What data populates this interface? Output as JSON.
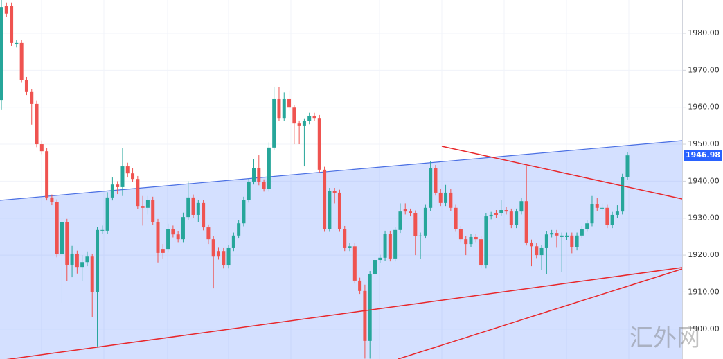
{
  "chart_data": {
    "type": "candlestick",
    "up_color": "#26a69a",
    "down_color": "#ef5350",
    "ylim": [
      1891.9,
      1989.0
    ],
    "yticks": [
      {
        "value": 1900,
        "label": "1900.00"
      },
      {
        "value": 1910,
        "label": "1910.00"
      },
      {
        "value": 1920,
        "label": "1920.00"
      },
      {
        "value": 1930,
        "label": "1930.00"
      },
      {
        "value": 1940,
        "label": "1940.00"
      },
      {
        "value": 1950,
        "label": "1950.00"
      },
      {
        "value": 1960,
        "label": "1960.00"
      },
      {
        "value": 1970,
        "label": "1970.00"
      },
      {
        "value": 1980,
        "label": "1980.00"
      }
    ],
    "grid": true,
    "last_price": {
      "value": 1946.98,
      "label": "1946.98",
      "color": "#2962ff"
    },
    "watermark": "汇外网",
    "open": [
      1961.8,
      1987.5,
      1987.5,
      1977.0,
      1977.4,
      1967.4,
      1964.1,
      1960.9,
      1950.0,
      1948.1,
      1935.6,
      1934.3,
      1920.2,
      1929.0,
      1917.4,
      1920.4,
      1916.8,
      1918.1,
      1919.6,
      1909.9,
      1926.6,
      1926.6,
      1935.6,
      1939.1,
      1938.4,
      1944.0,
      1942.1,
      1940.6,
      1933.3,
      1932.8,
      1935.0,
      1929.0,
      1921.5,
      1921.5,
      1927.1,
      1925.6,
      1924.3,
      1930.3,
      1935.6,
      1930.9,
      1934.1,
      1927.5,
      1924.3,
      1921.1,
      1921.1,
      1917.2,
      1921.9,
      1925.3,
      1928.6,
      1935.0,
      1939.9,
      1943.6,
      1939.7,
      1938.0,
      1949.1,
      1962.2,
      1957.1,
      1962.2,
      1959.9,
      1955.6,
      1954.9,
      1956.2,
      1957.7,
      1957.1,
      1943.1,
      1927.1,
      1937.4,
      1936.9,
      1927.1,
      1921.9,
      1922.4,
      1913.1,
      1910.3,
      1896.8,
      1914.9,
      1918.7,
      1919.3,
      1925.8,
      1919.1,
      1926.8,
      1932.4,
      1931.8,
      1931.3,
      1925.1,
      1925.3,
      1932.8,
      1943.6,
      1936.9,
      1934.1,
      1936.9,
      1932.8,
      1927.1,
      1924.3,
      1923.0,
      1924.9,
      1924.3,
      1917.2,
      1930.5,
      1931.4,
      1931.4,
      1932.2,
      1931.8,
      1928.1,
      1931.8,
      1934.6,
      1923.4,
      1922.4,
      1920.0,
      1921.9,
      1925.6,
      1926.0,
      1924.9,
      1924.9,
      1925.3,
      1922.1,
      1925.3,
      1927.1,
      1928.6,
      1933.7,
      1932.6,
      1932.8,
      1928.1,
      1930.9,
      1931.8,
      1941.2
    ],
    "high": [
      1989.0,
      1988.3,
      1988.3,
      1978.2,
      1978.2,
      1968.2,
      1964.9,
      1961.7,
      1951.0,
      1948.9,
      1936.4,
      1935.1,
      1929.8,
      1929.8,
      1922.5,
      1921.2,
      1920.0,
      1921.0,
      1920.4,
      1927.6,
      1928.0,
      1937.0,
      1941.0,
      1940.0,
      1949.0,
      1945.0,
      1943.5,
      1941.4,
      1936.0,
      1936.0,
      1935.8,
      1929.8,
      1923.0,
      1928.5,
      1928.0,
      1926.4,
      1931.5,
      1940.0,
      1936.4,
      1935.0,
      1934.9,
      1928.3,
      1925.1,
      1922.0,
      1921.9,
      1922.7,
      1926.1,
      1929.4,
      1935.8,
      1940.7,
      1946.0,
      1947.0,
      1940.5,
      1950.5,
      1965.5,
      1965.5,
      1964.0,
      1964.5,
      1960.7,
      1956.4,
      1957.0,
      1958.5,
      1958.5,
      1957.9,
      1943.9,
      1938.2,
      1938.2,
      1937.7,
      1927.9,
      1923.2,
      1923.2,
      1913.9,
      1912.0,
      1915.7,
      1919.5,
      1920.1,
      1926.6,
      1926.6,
      1927.6,
      1934.0,
      1934.0,
      1932.6,
      1932.1,
      1926.1,
      1933.6,
      1945.5,
      1944.4,
      1938.0,
      1939.0,
      1938.0,
      1933.6,
      1927.9,
      1925.1,
      1925.7,
      1925.7,
      1925.1,
      1931.3,
      1931.7,
      1932.2,
      1935.0,
      1933.0,
      1932.6,
      1932.6,
      1935.4,
      1944.0,
      1924.2,
      1923.2,
      1922.7,
      1926.4,
      1926.8,
      1926.8,
      1926.1,
      1926.1,
      1926.1,
      1926.1,
      1927.9,
      1929.4,
      1936.0,
      1935.5,
      1934.0,
      1933.6,
      1931.7,
      1933.5,
      1942.0,
      1947.8
    ],
    "low": [
      1959.4,
      1984.5,
      1976.6,
      1976.2,
      1966.6,
      1963.3,
      1955.3,
      1949.2,
      1947.3,
      1934.8,
      1933.5,
      1919.4,
      1907.0,
      1913.0,
      1914.0,
      1915.0,
      1913.0,
      1917.0,
      1903.3,
      1895.3,
      1925.8,
      1925.8,
      1934.8,
      1936.5,
      1936.0,
      1941.0,
      1939.8,
      1932.5,
      1928.0,
      1931.0,
      1928.2,
      1918.0,
      1919.0,
      1920.7,
      1924.8,
      1923.5,
      1923.5,
      1929.5,
      1930.1,
      1929.0,
      1926.7,
      1923.0,
      1911.0,
      1918.8,
      1916.4,
      1916.4,
      1921.1,
      1924.5,
      1927.8,
      1934.2,
      1939.1,
      1938.9,
      1937.2,
      1937.2,
      1948.3,
      1956.3,
      1956.3,
      1959.1,
      1950.0,
      1950.0,
      1944.0,
      1955.4,
      1956.3,
      1942.3,
      1926.3,
      1926.3,
      1934.0,
      1926.3,
      1921.1,
      1921.1,
      1912.3,
      1909.5,
      1892.0,
      1892.0,
      1914.1,
      1917.9,
      1918.5,
      1918.3,
      1918.3,
      1926.0,
      1931.0,
      1930.5,
      1920.0,
      1919.0,
      1924.5,
      1932.0,
      1936.1,
      1933.3,
      1933.3,
      1932.0,
      1926.3,
      1923.5,
      1920.0,
      1922.2,
      1923.5,
      1916.4,
      1916.4,
      1929.7,
      1930.1,
      1930.6,
      1931.0,
      1927.3,
      1927.3,
      1931.0,
      1922.6,
      1917.0,
      1919.2,
      1916.0,
      1914.9,
      1924.8,
      1922.0,
      1915.5,
      1924.1,
      1920.5,
      1921.3,
      1924.5,
      1926.3,
      1927.8,
      1932.0,
      1931.8,
      1927.3,
      1927.3,
      1930.1,
      1931.0,
      1940.4
    ],
    "close": [
      1987.1,
      1985.3,
      1977.4,
      1977.4,
      1967.4,
      1964.1,
      1960.9,
      1950.0,
      1948.1,
      1935.6,
      1934.3,
      1920.2,
      1929.0,
      1917.4,
      1920.4,
      1916.8,
      1918.1,
      1919.6,
      1909.9,
      1926.8,
      1926.8,
      1935.6,
      1939.1,
      1938.4,
      1944.0,
      1942.1,
      1940.6,
      1933.3,
      1932.8,
      1935.0,
      1929.0,
      1920.6,
      1920.6,
      1927.1,
      1925.6,
      1924.3,
      1930.3,
      1935.6,
      1930.9,
      1934.1,
      1927.5,
      1924.3,
      1919.6,
      1919.6,
      1917.2,
      1921.9,
      1925.3,
      1928.6,
      1935.0,
      1939.9,
      1943.6,
      1939.7,
      1938.0,
      1949.1,
      1962.2,
      1957.1,
      1962.2,
      1959.9,
      1955.6,
      1954.9,
      1956.2,
      1957.7,
      1957.1,
      1943.1,
      1927.1,
      1937.4,
      1936.9,
      1927.1,
      1921.9,
      1922.4,
      1913.1,
      1910.3,
      1896.8,
      1914.9,
      1918.7,
      1919.3,
      1925.8,
      1919.1,
      1926.8,
      1931.8,
      1931.8,
      1931.3,
      1925.1,
      1925.3,
      1932.8,
      1943.6,
      1936.9,
      1934.1,
      1936.9,
      1932.8,
      1927.1,
      1924.3,
      1923.0,
      1924.9,
      1924.3,
      1917.2,
      1930.5,
      1930.9,
      1930.9,
      1932.2,
      1931.8,
      1928.1,
      1931.8,
      1934.6,
      1923.4,
      1922.4,
      1920.0,
      1921.9,
      1925.6,
      1926.0,
      1925.3,
      1925.3,
      1925.3,
      1922.1,
      1925.3,
      1927.1,
      1928.6,
      1933.7,
      1932.8,
      1932.8,
      1928.1,
      1930.9,
      1931.8,
      1941.2,
      1946.98
    ]
  }
}
